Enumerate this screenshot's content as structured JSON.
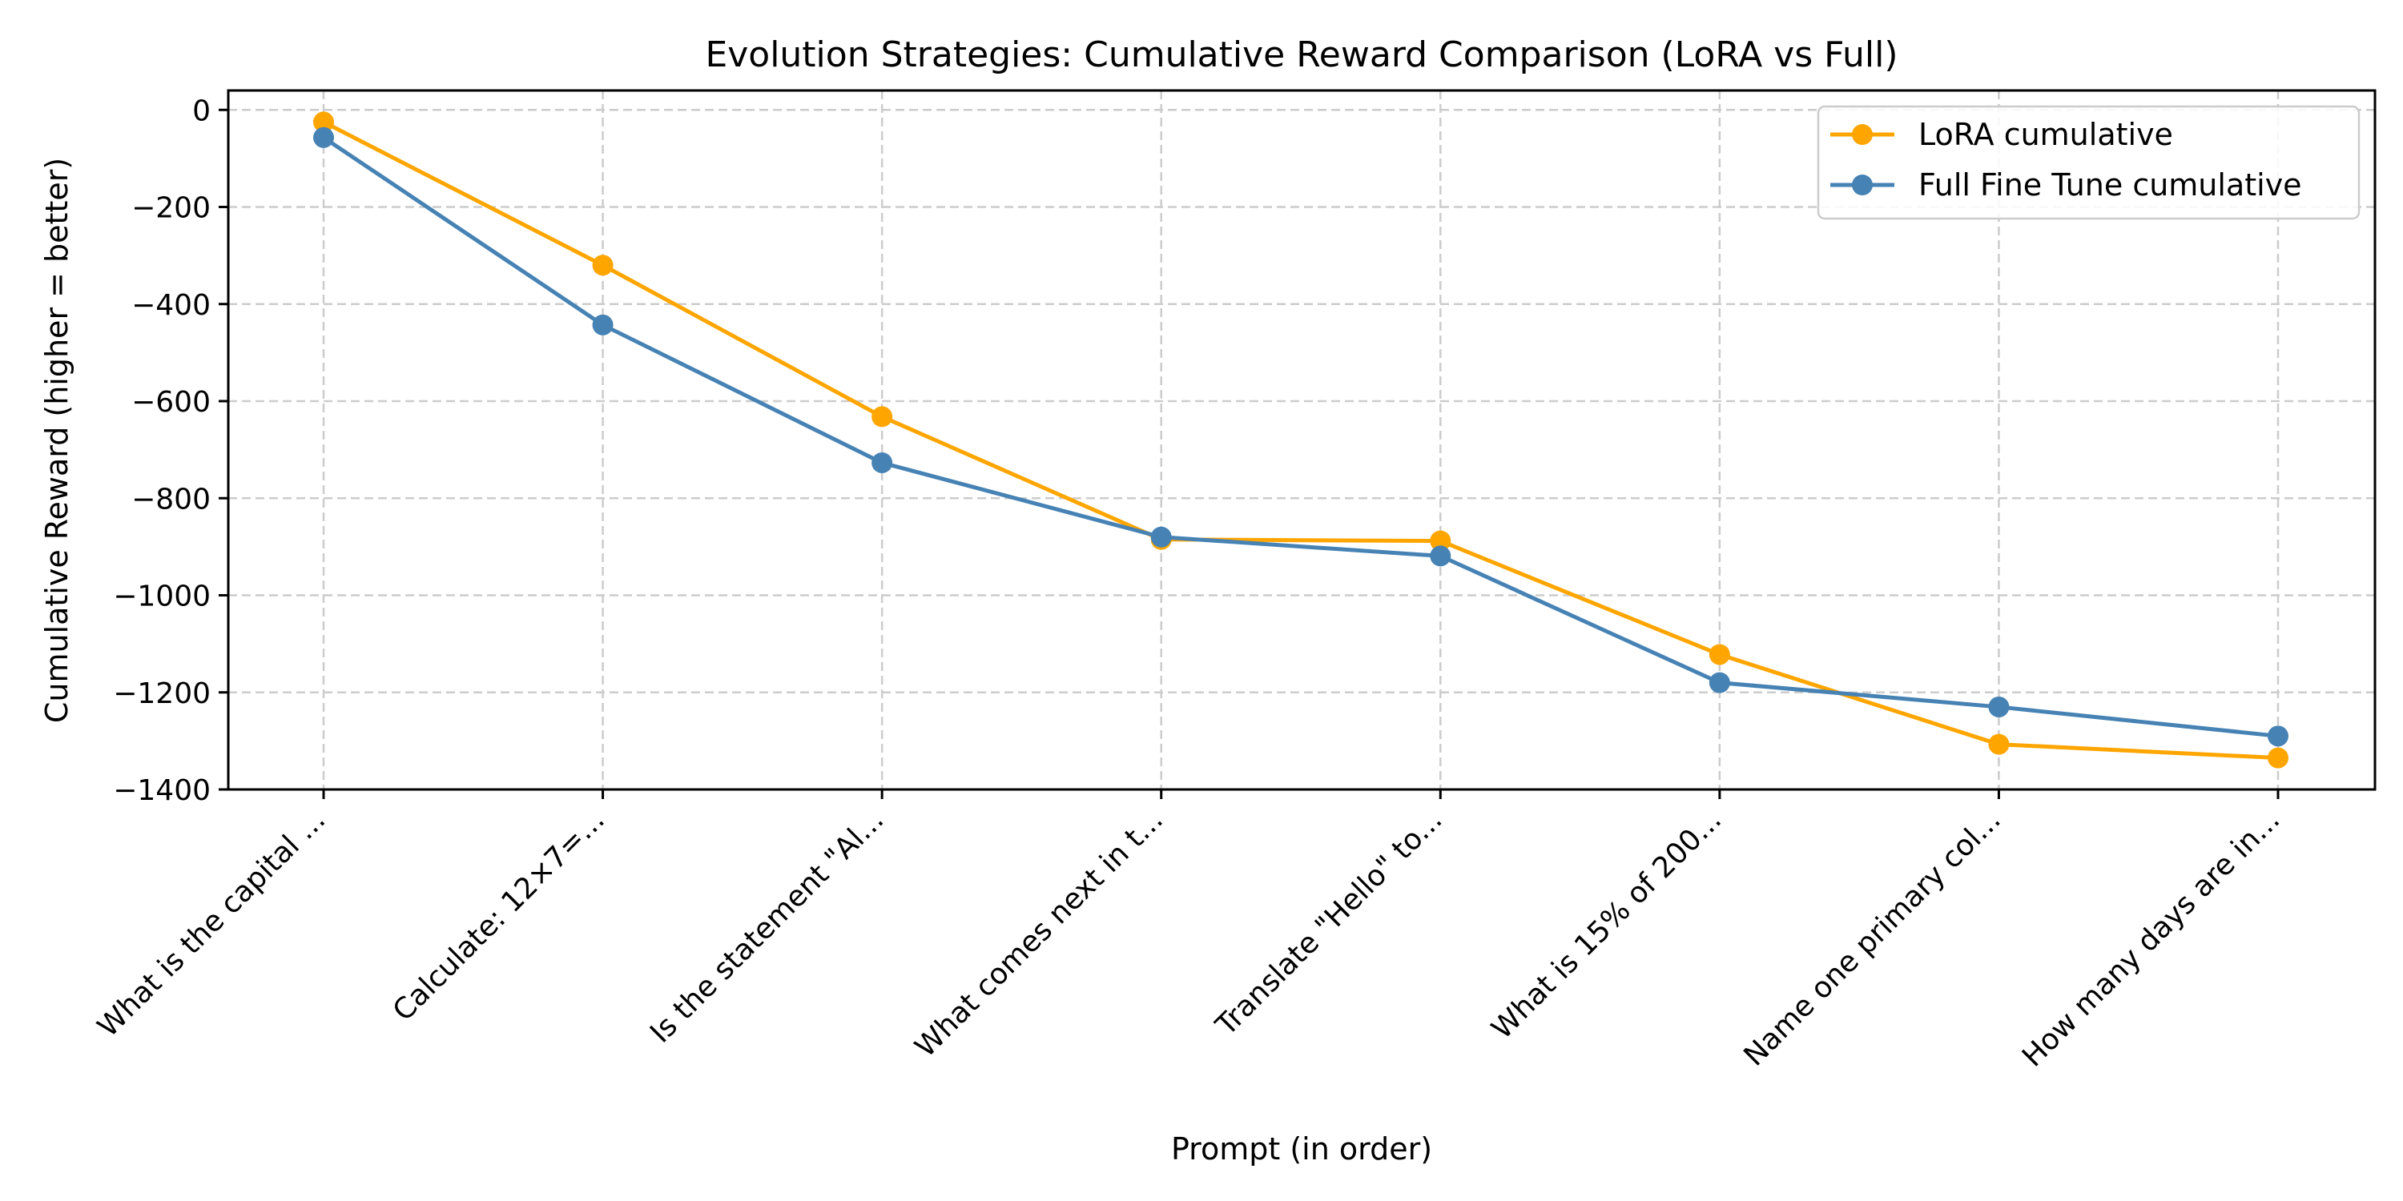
{
  "chart_data": {
    "type": "line",
    "title": "Evolution Strategies: Cumulative Reward Comparison (LoRA vs Full)",
    "xlabel": "Prompt (in order)",
    "ylabel": "Cumulative Reward (higher = better)",
    "categories": [
      "What is the capital ...",
      "Calculate: 12×7=...",
      "Is the statement \"Al...",
      "What comes next in t...",
      "Translate \"Hello\" to...",
      "What is 15% of 200...",
      "Name one primary col...",
      "How many days are in..."
    ],
    "ylim": [
      -1400,
      40
    ],
    "yticks": [
      0,
      -200,
      -400,
      -600,
      -800,
      -1000,
      -1200,
      -1400
    ],
    "ytick_labels": [
      "0",
      "−200",
      "−400",
      "−600",
      "−800",
      "−1000",
      "−1200",
      "−1400"
    ],
    "grid": true,
    "legend_position": "top-right",
    "series": [
      {
        "name": "LoRA cumulative",
        "color": "#FFA500",
        "values": [
          -25,
          -320,
          -632,
          -885,
          -888,
          -1122,
          -1307,
          -1335
        ]
      },
      {
        "name": "Full Fine Tune cumulative",
        "color": "#4682B4",
        "values": [
          -57,
          -443,
          -727,
          -880,
          -919,
          -1180,
          -1230,
          -1290
        ]
      }
    ]
  }
}
